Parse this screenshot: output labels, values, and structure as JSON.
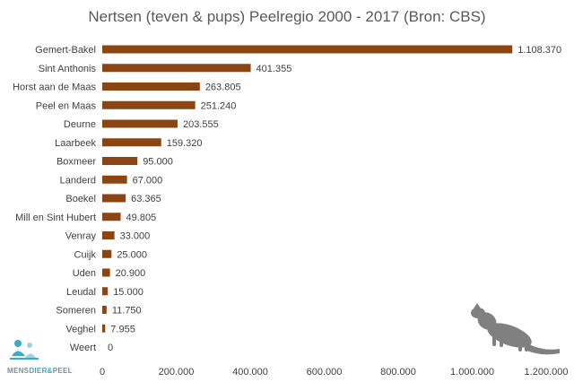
{
  "chart_data": {
    "type": "bar",
    "orientation": "horizontal",
    "title": "Nertsen (teven & pups) Peelregio 2000 - 2017 (Bron: CBS)",
    "categories": [
      "Gemert-Bakel",
      "Sint Anthonis",
      "Horst aan de Maas",
      "Peel en Maas",
      "Deurne",
      "Laarbeek",
      "Boxmeer",
      "Landerd",
      "Boekel",
      "Mill en Sint Hubert",
      "Venray",
      "Cuijk",
      "Uden",
      "Leudal",
      "Someren",
      "Veghel",
      "Weert"
    ],
    "values": [
      1108370,
      401355,
      263805,
      251240,
      203555,
      159320,
      95000,
      67000,
      63365,
      49805,
      33000,
      25000,
      20900,
      15000,
      11750,
      7955,
      0
    ],
    "value_labels": [
      "1.108.370",
      "401.355",
      "263.805",
      "251.240",
      "203.555",
      "159.320",
      "95.000",
      "67.000",
      "63.365",
      "49.805",
      "33.000",
      "25.000",
      "20.900",
      "15.000",
      "11.750",
      "7.955",
      "0"
    ],
    "xlim": [
      0,
      1200000
    ],
    "xticks": [
      0,
      200000,
      400000,
      600000,
      800000,
      1000000,
      1200000
    ],
    "xtick_labels": [
      "0",
      "200.000",
      "400.000",
      "600.000",
      "800.000",
      "1.000.000",
      "1.200.000"
    ],
    "xlabel": "",
    "ylabel": "",
    "grid": false,
    "legend": "none",
    "bar_color": "#8B4513"
  },
  "logo": {
    "text_a": "MENS",
    "text_b": "DIER",
    "text_c": "&",
    "text_d": "PEEL",
    "color_main": "#7f8c95",
    "color_accent": "#3ba9c9"
  },
  "decoration": {
    "icon": "mink-silhouette-icon",
    "color": "#808080"
  }
}
